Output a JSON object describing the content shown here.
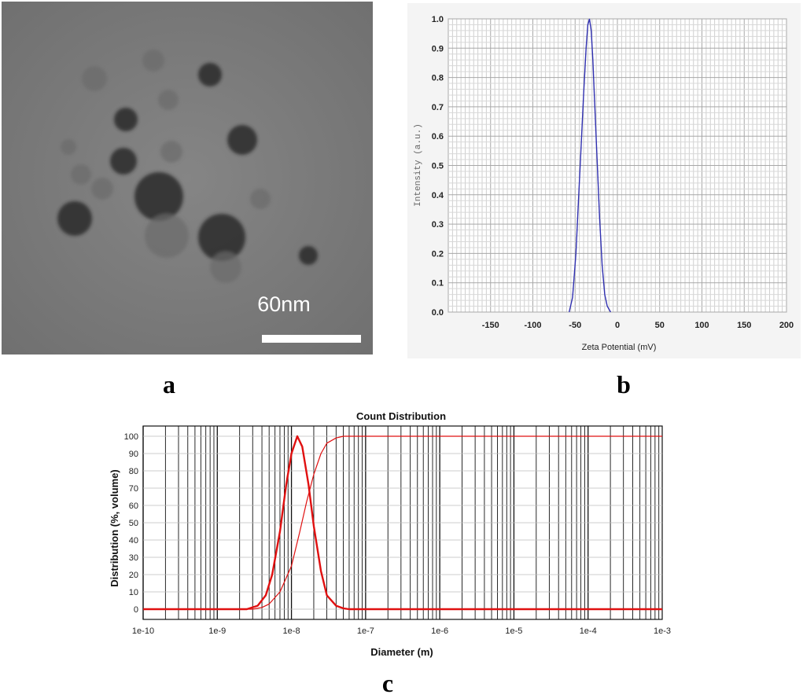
{
  "panel_labels": {
    "a": "a",
    "b": "b",
    "c": "c"
  },
  "micrograph": {
    "scale_bar_label": "60nm",
    "colors": {
      "background": "#7b7b7b",
      "particle_dark": "#2a2a2a",
      "particle_light": "#6b6b6b",
      "scale_bar": "#ffffff"
    }
  },
  "chart_data": [
    {
      "type": "line",
      "title": "",
      "xlabel": "Zeta Potential (mV)",
      "ylabel": "Intensity (a.u.)",
      "xlim": [
        -200,
        200
      ],
      "ylim": [
        0,
        1.0
      ],
      "x_ticks": [
        -150,
        -100,
        -50,
        0,
        50,
        100,
        150,
        200
      ],
      "x_tick_labels": [
        "-150",
        "-100",
        "-50",
        "0",
        "50",
        "100",
        "150",
        "200"
      ],
      "y_ticks": [
        0.0,
        0.1,
        0.2,
        0.3,
        0.4,
        0.5,
        0.6,
        0.7,
        0.8,
        0.9,
        1.0
      ],
      "y_tick_labels": [
        "0.0",
        "0.1",
        "0.2",
        "0.3",
        "0.4",
        "0.5",
        "0.6",
        "0.7",
        "0.8",
        "0.9",
        "1.0"
      ],
      "grid": true,
      "legend": "none",
      "series": [
        {
          "color": "#3030b0",
          "x": [
            -57,
            -53,
            -49,
            -46,
            -43,
            -40,
            -37,
            -35,
            -33,
            -31,
            -29,
            -27,
            -24,
            -21,
            -18,
            -15,
            -12,
            -8
          ],
          "y": [
            0.0,
            0.05,
            0.2,
            0.38,
            0.56,
            0.74,
            0.9,
            0.98,
            1.0,
            0.96,
            0.86,
            0.72,
            0.52,
            0.32,
            0.16,
            0.06,
            0.02,
            0.0
          ]
        }
      ]
    },
    {
      "type": "line",
      "title": "Count Distribution",
      "xlabel": "Diameter (m)",
      "ylabel": "Distribution (%, volume)",
      "x_scale": "log",
      "xlim": [
        1e-10,
        0.001
      ],
      "ylim": [
        0,
        100
      ],
      "x_ticks": [
        1e-10,
        1e-09,
        1e-08,
        1e-07,
        1e-06,
        1e-05,
        0.0001,
        0.001
      ],
      "x_tick_labels": [
        "1e-10",
        "1e-9",
        "1e-8",
        "1e-7",
        "1e-6",
        "1e-5",
        "1e-4",
        "1e-3"
      ],
      "y_ticks": [
        0,
        10,
        20,
        30,
        40,
        50,
        60,
        70,
        80,
        90,
        100
      ],
      "y_tick_labels": [
        "0",
        "10",
        "20",
        "30",
        "40",
        "50",
        "60",
        "70",
        "80",
        "90",
        "100"
      ],
      "grid": true,
      "legend": "none",
      "series": [
        {
          "color": "#e01010",
          "x": [
            1e-10,
            2.5e-09,
            3.5e-09,
            4.5e-09,
            5.5e-09,
            7e-09,
            8.5e-09,
            1e-08,
            1.2e-08,
            1.4e-08,
            1.7e-08,
            2e-08,
            2.5e-08,
            3e-08,
            4e-08,
            5e-08,
            6e-08,
            0.001
          ],
          "y": [
            0,
            0,
            2,
            8,
            20,
            45,
            72,
            90,
            100,
            94,
            72,
            48,
            22,
            8,
            2,
            0.5,
            0,
            0
          ]
        },
        {
          "color": "#e01010",
          "x": [
            1e-10,
            3e-09,
            4e-09,
            5e-09,
            7e-09,
            1e-08,
            1.3e-08,
            1.6e-08,
            2e-08,
            2.5e-08,
            3e-08,
            4e-08,
            5e-08,
            6e-08,
            0.001
          ],
          "y": [
            0,
            0,
            1,
            3,
            10,
            25,
            45,
            62,
            78,
            90,
            96,
            99,
            100,
            100,
            100
          ]
        }
      ]
    }
  ]
}
